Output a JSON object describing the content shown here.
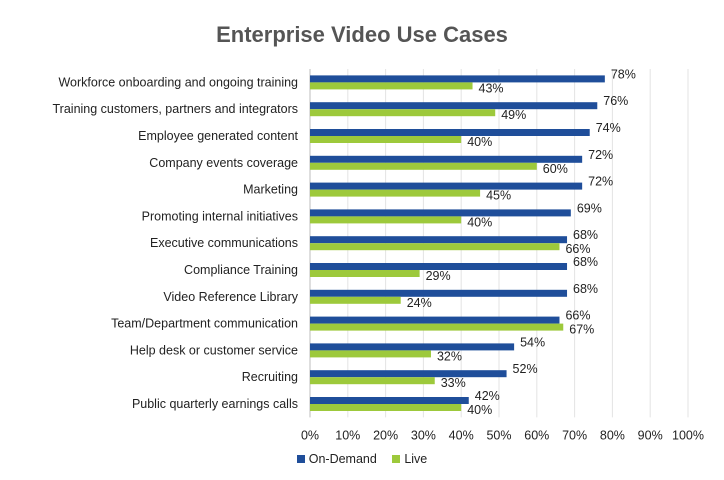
{
  "chart_data": {
    "type": "bar",
    "orientation": "horizontal",
    "title": "Enterprise Video Use Cases",
    "categories": [
      "Workforce onboarding and ongoing training",
      "Training customers, partners and integrators",
      "Employee generated content",
      "Company events coverage",
      "Marketing",
      "Promoting internal initiatives",
      "Executive communications",
      "Compliance Training",
      "Video Reference Library",
      "Team/Department communication",
      "Help desk or customer service",
      "Recruiting",
      "Public quarterly earnings calls"
    ],
    "series": [
      {
        "name": "On-Demand",
        "color": "#1f4e9a",
        "values": [
          78,
          76,
          74,
          72,
          72,
          69,
          68,
          68,
          68,
          66,
          54,
          52,
          42
        ]
      },
      {
        "name": "Live",
        "color": "#9dc93b",
        "values": [
          43,
          49,
          40,
          60,
          45,
          40,
          66,
          29,
          24,
          67,
          32,
          33,
          40
        ]
      }
    ],
    "xlim": [
      0,
      100
    ],
    "xticks": [
      "0%",
      "10%",
      "20%",
      "30%",
      "40%",
      "50%",
      "60%",
      "70%",
      "80%",
      "90%",
      "100%"
    ],
    "value_suffix": "%",
    "grid": true,
    "legend_position": "bottom"
  }
}
